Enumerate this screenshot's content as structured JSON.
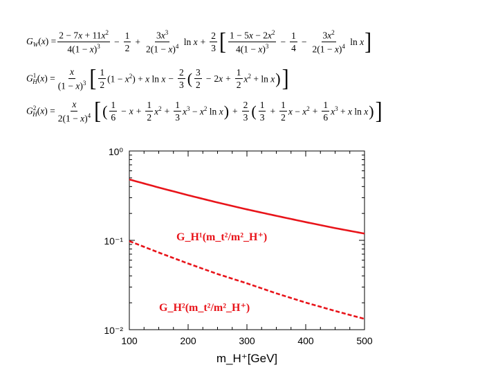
{
  "equations": [
    {
      "lhs": "G_W(x) =",
      "text": "G_W(x) = (2 − 7x + 11x²)/(4(1 − x)³) − 1/2 + 3x³/(2(1 − x)⁴) ln x + 2/3 [ (1 − 5x − 2x²)/(4(1 − x)³) − 1/4 − 3x²/(2(1 − x)⁴) ln x ]"
    },
    {
      "lhs": "G¹_H(x) =",
      "text": "G¹_H(x) = x/(1 − x)³ [ 1/2 (1 − x²) + x ln x − 2/3 ( 3/2 − 2x + 1/2 x² + ln x ) ]"
    },
    {
      "lhs": "G²_H(x) =",
      "text": "G²_H(x) = x/(2(1 − x)⁴) [ ( 1/6 − x + 1/2 x² + 1/3 x³ − x² ln x ) + 2/3 ( 1/3 + 1/2 x − x² + 1/6 x³ + x ln x ) ]"
    }
  ],
  "chart_data": {
    "type": "line",
    "x_scale": "linear",
    "y_scale": "log",
    "xlim": [
      100,
      500
    ],
    "ylim": [
      0.01,
      1
    ],
    "xticks": [
      "100",
      "200",
      "300",
      "400",
      "500"
    ],
    "yticks": [
      "10⁰",
      "10⁻¹",
      "10⁻²"
    ],
    "xlabel": "m_H⁺[GeV]",
    "ylabel": "",
    "grid": false,
    "color": "#e8141a",
    "series": [
      {
        "name": "G_H¹(m_t²/m²_H⁺)",
        "style": "solid",
        "x": [
          100,
          150,
          200,
          250,
          300,
          350,
          400,
          450,
          500
        ],
        "y": [
          0.48,
          0.39,
          0.32,
          0.265,
          0.222,
          0.188,
          0.16,
          0.137,
          0.119
        ]
      },
      {
        "name": "G_H²(m_t²/m²_H⁺)",
        "style": "dashed",
        "x": [
          100,
          150,
          200,
          250,
          300,
          350,
          400,
          450,
          500
        ],
        "y": [
          0.098,
          0.073,
          0.055,
          0.042,
          0.033,
          0.0255,
          0.0201,
          0.0162,
          0.0132
        ]
      }
    ]
  }
}
